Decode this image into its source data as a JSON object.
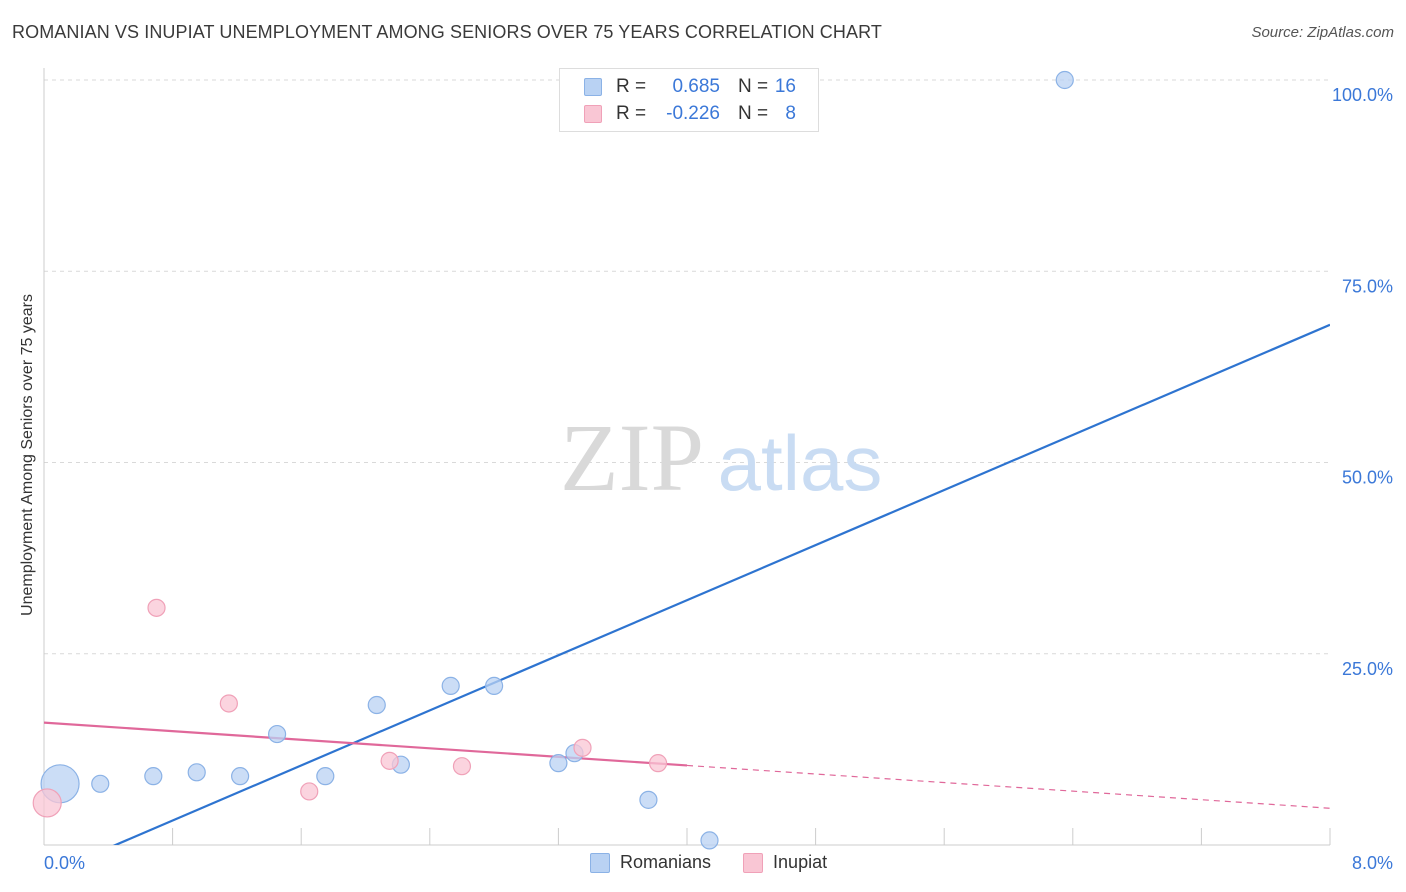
{
  "title": "ROMANIAN VS INUPIAT UNEMPLOYMENT AMONG SENIORS OVER 75 YEARS CORRELATION CHART",
  "source": "Source: ZipAtlas.com",
  "watermark": {
    "zip": "ZIP",
    "atlas": "atlas"
  },
  "legend": {
    "romanians": {
      "r_label": "R =",
      "r_value": "0.685",
      "n_label": "N =",
      "n_value": "16"
    },
    "inupiat": {
      "r_label": "R =",
      "r_value": "-0.226",
      "n_label": "N =",
      "n_value": "8"
    }
  },
  "colors": {
    "romanians_fill": "#b9d2f3",
    "romanians_stroke": "#8bb2e6",
    "romanians_line": "#2e74d0",
    "inupiat_fill": "#f9c6d4",
    "inupiat_stroke": "#f0a1b8",
    "inupiat_line": "#e0689a",
    "tick_text": "#3b78d8",
    "grid": "#d9d9d9"
  },
  "chart_data": {
    "type": "scatter",
    "title": "ROMANIAN VS INUPIAT UNEMPLOYMENT AMONG SENIORS OVER 75 YEARS CORRELATION CHART",
    "xlabel": "",
    "ylabel": "Unemployment Among Seniors over 75 years",
    "xlim": [
      0,
      8
    ],
    "ylim": [
      0,
      100
    ],
    "x_tick_labels": {
      "min": "0.0%",
      "max": "8.0%"
    },
    "y_ticks": [
      25,
      50,
      75,
      100
    ],
    "y_tick_labels": [
      "25.0%",
      "50.0%",
      "75.0%",
      "100.0%"
    ],
    "grid": true,
    "series": [
      {
        "name": "Romanians",
        "points": [
          {
            "x": 0.1,
            "y": 8.0,
            "size": "large"
          },
          {
            "x": 0.35,
            "y": 8.0
          },
          {
            "x": 0.68,
            "y": 9.0
          },
          {
            "x": 0.95,
            "y": 9.5
          },
          {
            "x": 1.22,
            "y": 9.0
          },
          {
            "x": 1.45,
            "y": 14.5
          },
          {
            "x": 1.75,
            "y": 9.0
          },
          {
            "x": 2.07,
            "y": 18.3
          },
          {
            "x": 2.22,
            "y": 10.5
          },
          {
            "x": 2.53,
            "y": 20.8
          },
          {
            "x": 2.8,
            "y": 20.8
          },
          {
            "x": 3.2,
            "y": 10.7
          },
          {
            "x": 3.3,
            "y": 12.0
          },
          {
            "x": 3.76,
            "y": 5.9
          },
          {
            "x": 4.14,
            "y": 0.6
          },
          {
            "x": 6.35,
            "y": 100.0
          }
        ],
        "trend": {
          "x0": 0.0,
          "y0": -4.0,
          "x1": 8.0,
          "y1": 68.0
        }
      },
      {
        "name": "Inupiat",
        "points": [
          {
            "x": 0.02,
            "y": 5.5,
            "size": "large"
          },
          {
            "x": 0.7,
            "y": 31.0
          },
          {
            "x": 1.15,
            "y": 18.5
          },
          {
            "x": 1.65,
            "y": 7.0
          },
          {
            "x": 2.15,
            "y": 11.0
          },
          {
            "x": 2.6,
            "y": 10.3
          },
          {
            "x": 3.35,
            "y": 12.7
          },
          {
            "x": 3.82,
            "y": 10.7
          }
        ],
        "trend": {
          "x0": 0.0,
          "y0": 16.0,
          "x1": 8.0,
          "y1": 4.8,
          "solid_until_x": 4.0
        }
      }
    ]
  },
  "bottom_legend": [
    {
      "label": "Romanians"
    },
    {
      "label": "Inupiat"
    }
  ]
}
